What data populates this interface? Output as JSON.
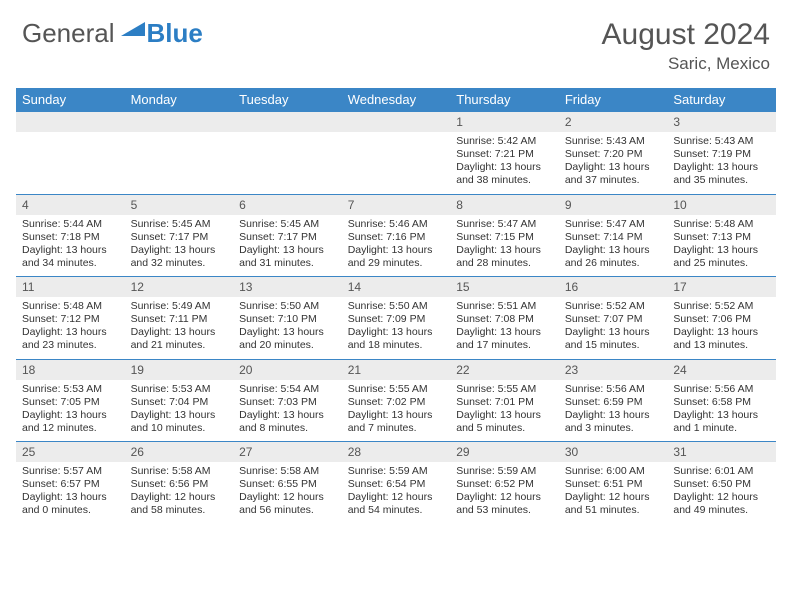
{
  "brand": {
    "part1": "General",
    "part2": "Blue",
    "part1_color": "#555555",
    "part2_color": "#2c7ec4"
  },
  "title": "August 2024",
  "location": "Saric, Mexico",
  "colors": {
    "header_bg": "#3b86c6",
    "header_text": "#ffffff",
    "daybar_bg": "#ececec",
    "rule": "#3b86c6",
    "body_text": "#333333",
    "title_text": "#555555",
    "background": "#ffffff"
  },
  "fonts": {
    "title_size_pt": 22,
    "location_size_pt": 13,
    "dow_size_pt": 10,
    "daynum_size_pt": 9,
    "cell_size_pt": 8
  },
  "days_of_week": [
    "Sunday",
    "Monday",
    "Tuesday",
    "Wednesday",
    "Thursday",
    "Friday",
    "Saturday"
  ],
  "weeks": [
    [
      {
        "n": "",
        "sr": "",
        "ss": "",
        "dl": ""
      },
      {
        "n": "",
        "sr": "",
        "ss": "",
        "dl": ""
      },
      {
        "n": "",
        "sr": "",
        "ss": "",
        "dl": ""
      },
      {
        "n": "",
        "sr": "",
        "ss": "",
        "dl": ""
      },
      {
        "n": "1",
        "sr": "5:42 AM",
        "ss": "7:21 PM",
        "dl": "13 hours and 38 minutes."
      },
      {
        "n": "2",
        "sr": "5:43 AM",
        "ss": "7:20 PM",
        "dl": "13 hours and 37 minutes."
      },
      {
        "n": "3",
        "sr": "5:43 AM",
        "ss": "7:19 PM",
        "dl": "13 hours and 35 minutes."
      }
    ],
    [
      {
        "n": "4",
        "sr": "5:44 AM",
        "ss": "7:18 PM",
        "dl": "13 hours and 34 minutes."
      },
      {
        "n": "5",
        "sr": "5:45 AM",
        "ss": "7:17 PM",
        "dl": "13 hours and 32 minutes."
      },
      {
        "n": "6",
        "sr": "5:45 AM",
        "ss": "7:17 PM",
        "dl": "13 hours and 31 minutes."
      },
      {
        "n": "7",
        "sr": "5:46 AM",
        "ss": "7:16 PM",
        "dl": "13 hours and 29 minutes."
      },
      {
        "n": "8",
        "sr": "5:47 AM",
        "ss": "7:15 PM",
        "dl": "13 hours and 28 minutes."
      },
      {
        "n": "9",
        "sr": "5:47 AM",
        "ss": "7:14 PM",
        "dl": "13 hours and 26 minutes."
      },
      {
        "n": "10",
        "sr": "5:48 AM",
        "ss": "7:13 PM",
        "dl": "13 hours and 25 minutes."
      }
    ],
    [
      {
        "n": "11",
        "sr": "5:48 AM",
        "ss": "7:12 PM",
        "dl": "13 hours and 23 minutes."
      },
      {
        "n": "12",
        "sr": "5:49 AM",
        "ss": "7:11 PM",
        "dl": "13 hours and 21 minutes."
      },
      {
        "n": "13",
        "sr": "5:50 AM",
        "ss": "7:10 PM",
        "dl": "13 hours and 20 minutes."
      },
      {
        "n": "14",
        "sr": "5:50 AM",
        "ss": "7:09 PM",
        "dl": "13 hours and 18 minutes."
      },
      {
        "n": "15",
        "sr": "5:51 AM",
        "ss": "7:08 PM",
        "dl": "13 hours and 17 minutes."
      },
      {
        "n": "16",
        "sr": "5:52 AM",
        "ss": "7:07 PM",
        "dl": "13 hours and 15 minutes."
      },
      {
        "n": "17",
        "sr": "5:52 AM",
        "ss": "7:06 PM",
        "dl": "13 hours and 13 minutes."
      }
    ],
    [
      {
        "n": "18",
        "sr": "5:53 AM",
        "ss": "7:05 PM",
        "dl": "13 hours and 12 minutes."
      },
      {
        "n": "19",
        "sr": "5:53 AM",
        "ss": "7:04 PM",
        "dl": "13 hours and 10 minutes."
      },
      {
        "n": "20",
        "sr": "5:54 AM",
        "ss": "7:03 PM",
        "dl": "13 hours and 8 minutes."
      },
      {
        "n": "21",
        "sr": "5:55 AM",
        "ss": "7:02 PM",
        "dl": "13 hours and 7 minutes."
      },
      {
        "n": "22",
        "sr": "5:55 AM",
        "ss": "7:01 PM",
        "dl": "13 hours and 5 minutes."
      },
      {
        "n": "23",
        "sr": "5:56 AM",
        "ss": "6:59 PM",
        "dl": "13 hours and 3 minutes."
      },
      {
        "n": "24",
        "sr": "5:56 AM",
        "ss": "6:58 PM",
        "dl": "13 hours and 1 minute."
      }
    ],
    [
      {
        "n": "25",
        "sr": "5:57 AM",
        "ss": "6:57 PM",
        "dl": "13 hours and 0 minutes."
      },
      {
        "n": "26",
        "sr": "5:58 AM",
        "ss": "6:56 PM",
        "dl": "12 hours and 58 minutes."
      },
      {
        "n": "27",
        "sr": "5:58 AM",
        "ss": "6:55 PM",
        "dl": "12 hours and 56 minutes."
      },
      {
        "n": "28",
        "sr": "5:59 AM",
        "ss": "6:54 PM",
        "dl": "12 hours and 54 minutes."
      },
      {
        "n": "29",
        "sr": "5:59 AM",
        "ss": "6:52 PM",
        "dl": "12 hours and 53 minutes."
      },
      {
        "n": "30",
        "sr": "6:00 AM",
        "ss": "6:51 PM",
        "dl": "12 hours and 51 minutes."
      },
      {
        "n": "31",
        "sr": "6:01 AM",
        "ss": "6:50 PM",
        "dl": "12 hours and 49 minutes."
      }
    ]
  ],
  "labels": {
    "sunrise": "Sunrise:",
    "sunset": "Sunset:",
    "daylight": "Daylight:"
  }
}
